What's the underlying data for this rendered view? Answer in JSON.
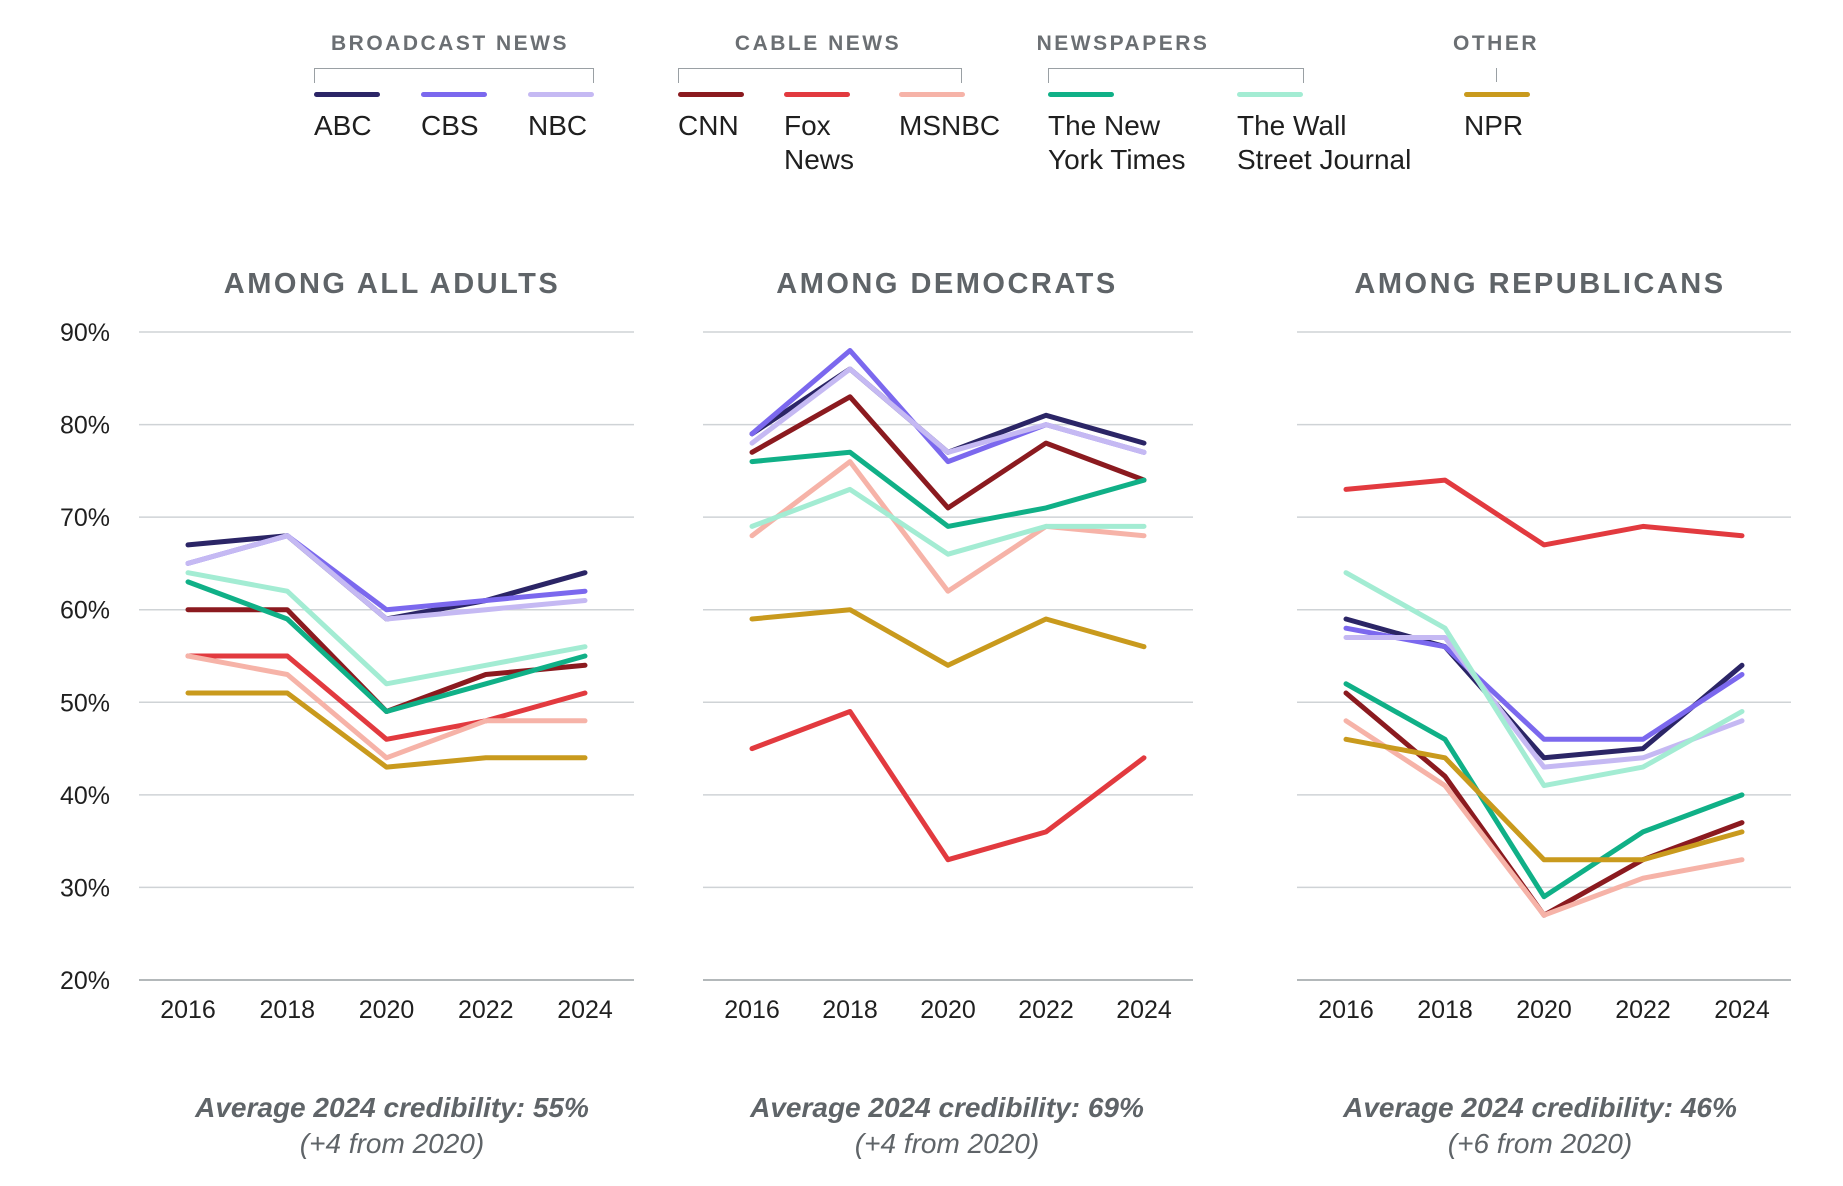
{
  "legend": {
    "groups": [
      {
        "title": "BROADCAST NEWS",
        "items": [
          {
            "label": "ABC",
            "color": "#2b2566"
          },
          {
            "label": "CBS",
            "color": "#7b68ee"
          },
          {
            "label": "NBC",
            "color": "#c5b9f3"
          }
        ]
      },
      {
        "title": "CABLE NEWS",
        "items": [
          {
            "label": "CNN",
            "color": "#8b1a1f"
          },
          {
            "label": "Fox\nNews",
            "color": "#e23a3f"
          },
          {
            "label": "MSNBC",
            "color": "#f6b3a8"
          }
        ]
      },
      {
        "title": "NEWSPAPERS",
        "items": [
          {
            "label": "The New\nYork Times",
            "color": "#10b087"
          },
          {
            "label": "The Wall\nStreet Journal",
            "color": "#a3ecd3"
          }
        ]
      },
      {
        "title": "OTHER",
        "items": [
          {
            "label": "NPR",
            "color": "#c99a1d"
          }
        ]
      }
    ]
  },
  "chart_data": [
    {
      "type": "line",
      "title": "AMONG ALL ADULTS",
      "x": [
        2016,
        2018,
        2020,
        2022,
        2024
      ],
      "x_tick_labels": [
        "2016",
        "2018",
        "2020",
        "2022",
        "2024"
      ],
      "y_tick_labels": [
        "90%",
        "80%",
        "70%",
        "60%",
        "50%",
        "40%",
        "30%",
        "20%"
      ],
      "ylim": [
        20,
        90
      ],
      "grid": true,
      "series": [
        {
          "name": "ABC",
          "color": "#2b2566",
          "values": [
            67,
            68,
            59,
            61,
            64
          ]
        },
        {
          "name": "CBS",
          "color": "#7b68ee",
          "values": [
            65,
            68,
            60,
            61,
            62
          ]
        },
        {
          "name": "NBC",
          "color": "#c5b9f3",
          "values": [
            65,
            68,
            59,
            60,
            61
          ]
        },
        {
          "name": "CNN",
          "color": "#8b1a1f",
          "values": [
            60,
            60,
            49,
            53,
            54
          ]
        },
        {
          "name": "Fox News",
          "color": "#e23a3f",
          "values": [
            55,
            55,
            46,
            48,
            51
          ]
        },
        {
          "name": "MSNBC",
          "color": "#f6b3a8",
          "values": [
            55,
            53,
            44,
            48,
            48
          ]
        },
        {
          "name": "The New York Times",
          "color": "#10b087",
          "values": [
            63,
            59,
            49,
            52,
            55
          ]
        },
        {
          "name": "The Wall Street Journal",
          "color": "#a3ecd3",
          "values": [
            64,
            62,
            52,
            54,
            56
          ]
        },
        {
          "name": "NPR",
          "color": "#c99a1d",
          "values": [
            51,
            51,
            43,
            44,
            44
          ]
        }
      ],
      "caption": "Average 2024 credibility: 55%",
      "caption_sub": "(+4 from 2020)"
    },
    {
      "type": "line",
      "title": "AMONG DEMOCRATS",
      "x": [
        2016,
        2018,
        2020,
        2022,
        2024
      ],
      "x_tick_labels": [
        "2016",
        "2018",
        "2020",
        "2022",
        "2024"
      ],
      "ylim": [
        20,
        90
      ],
      "grid": true,
      "series": [
        {
          "name": "ABC",
          "color": "#2b2566",
          "values": [
            79,
            86,
            77,
            81,
            78
          ]
        },
        {
          "name": "CBS",
          "color": "#7b68ee",
          "values": [
            79,
            88,
            76,
            80,
            77
          ]
        },
        {
          "name": "NBC",
          "color": "#c5b9f3",
          "values": [
            78,
            86,
            77,
            80,
            77
          ]
        },
        {
          "name": "CNN",
          "color": "#8b1a1f",
          "values": [
            77,
            83,
            71,
            78,
            74
          ]
        },
        {
          "name": "Fox News",
          "color": "#e23a3f",
          "values": [
            45,
            49,
            33,
            36,
            44
          ]
        },
        {
          "name": "MSNBC",
          "color": "#f6b3a8",
          "values": [
            68,
            76,
            62,
            69,
            68
          ]
        },
        {
          "name": "The New York Times",
          "color": "#10b087",
          "values": [
            76,
            77,
            69,
            71,
            74
          ]
        },
        {
          "name": "The Wall Street Journal",
          "color": "#a3ecd3",
          "values": [
            69,
            73,
            66,
            69,
            69
          ]
        },
        {
          "name": "NPR",
          "color": "#c99a1d",
          "values": [
            59,
            60,
            54,
            59,
            56
          ]
        }
      ],
      "caption": "Average 2024 credibility: 69%",
      "caption_sub": "(+4 from 2020)"
    },
    {
      "type": "line",
      "title": "AMONG REPUBLICANS",
      "x": [
        2016,
        2018,
        2020,
        2022,
        2024
      ],
      "x_tick_labels": [
        "2016",
        "2018",
        "2020",
        "2022",
        "2024"
      ],
      "ylim": [
        20,
        90
      ],
      "grid": true,
      "series": [
        {
          "name": "ABC",
          "color": "#2b2566",
          "values": [
            59,
            56,
            44,
            45,
            54
          ]
        },
        {
          "name": "CBS",
          "color": "#7b68ee",
          "values": [
            58,
            56,
            46,
            46,
            53
          ]
        },
        {
          "name": "NBC",
          "color": "#c5b9f3",
          "values": [
            57,
            57,
            43,
            44,
            48
          ]
        },
        {
          "name": "CNN",
          "color": "#8b1a1f",
          "values": [
            51,
            42,
            27,
            33,
            37
          ]
        },
        {
          "name": "Fox News",
          "color": "#e23a3f",
          "values": [
            73,
            74,
            67,
            69,
            68
          ]
        },
        {
          "name": "MSNBC",
          "color": "#f6b3a8",
          "values": [
            48,
            41,
            27,
            31,
            33
          ]
        },
        {
          "name": "The New York Times",
          "color": "#10b087",
          "values": [
            52,
            46,
            29,
            36,
            40
          ]
        },
        {
          "name": "The Wall Street Journal",
          "color": "#a3ecd3",
          "values": [
            64,
            58,
            41,
            43,
            49
          ]
        },
        {
          "name": "NPR",
          "color": "#c99a1d",
          "values": [
            46,
            44,
            33,
            33,
            36
          ]
        }
      ],
      "caption": "Average 2024 credibility: 46%",
      "caption_sub": "(+6 from 2020)"
    }
  ]
}
